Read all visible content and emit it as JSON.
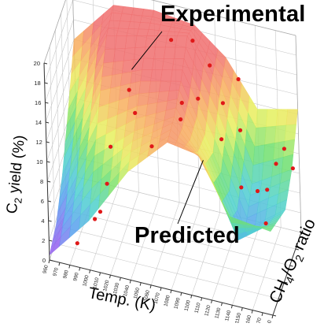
{
  "chart_data": {
    "type": "surface-3d",
    "ylabel_prefix": "C",
    "ylabel_sub": "2",
    "ylabel_suffix": " yield (%)",
    "xlabel": "Temp. (K)",
    "zlabel_main": "CH",
    "zlabel_sub": "4",
    "zlabel_rest": "/O",
    "zlabel_sub2": "2",
    "zlabel_end": " ratio",
    "annotations": {
      "experimental": "Experimental",
      "predicted": "Predicted"
    },
    "y_ticks": [
      "0",
      "2",
      "4",
      "6",
      "8",
      "10",
      "12",
      "14",
      "16",
      "18",
      "20"
    ],
    "x_ticks": [
      "960",
      "970",
      "980",
      "990",
      "1000",
      "1010",
      "1020",
      "1030",
      "1040",
      "1050",
      "1060",
      "1070",
      "1080",
      "1090",
      "1100",
      "1110",
      "1120",
      "1130",
      "1140",
      "1150",
      "1160",
      "1170",
      "1180"
    ],
    "ylim": [
      0,
      20
    ],
    "xlim": [
      960,
      1180
    ],
    "ratio_range": [
      0,
      1
    ],
    "grid": true,
    "colormap": [
      "#9a5cf0",
      "#5aa0f0",
      "#4fd0d0",
      "#70e070",
      "#e8f060",
      "#f8b060",
      "#f07070"
    ],
    "points": [
      {
        "temp": 985,
        "ratio": 0.1,
        "yield": 1.5
      },
      {
        "temp": 1000,
        "ratio": 0.2,
        "yield": 3.5
      },
      {
        "temp": 1005,
        "ratio": 0.22,
        "yield": 4.2
      },
      {
        "temp": 1010,
        "ratio": 0.3,
        "yield": 6.5
      },
      {
        "temp": 1010,
        "ratio": 0.45,
        "yield": 9.0
      },
      {
        "temp": 1030,
        "ratio": 0.62,
        "yield": 11.5
      },
      {
        "temp": 1050,
        "ratio": 0.48,
        "yield": 9.8
      },
      {
        "temp": 1075,
        "ratio": 0.62,
        "yield": 12.0
      },
      {
        "temp": 1040,
        "ratio": 0.12,
        "yield": 18.3
      },
      {
        "temp": 1060,
        "ratio": 0.88,
        "yield": 17.5
      },
      {
        "temp": 1080,
        "ratio": 0.92,
        "yield": 17.6
      },
      {
        "temp": 1085,
        "ratio": 0.35,
        "yield": 16.2
      },
      {
        "temp": 1100,
        "ratio": 0.8,
        "yield": 16.6
      },
      {
        "temp": 1095,
        "ratio": 0.55,
        "yield": 15.2
      },
      {
        "temp": 1115,
        "ratio": 0.62,
        "yield": 11.0
      },
      {
        "temp": 1115,
        "ratio": 0.7,
        "yield": 14.0
      },
      {
        "temp": 1125,
        "ratio": 0.9,
        "yield": 15.0
      },
      {
        "temp": 1130,
        "ratio": 0.75,
        "yield": 11.2
      },
      {
        "temp": 1140,
        "ratio": 0.4,
        "yield": 8.6
      },
      {
        "temp": 1150,
        "ratio": 0.6,
        "yield": 6.8
      },
      {
        "temp": 1155,
        "ratio": 0.75,
        "yield": 5.8
      },
      {
        "temp": 1160,
        "ratio": 0.9,
        "yield": 7.3
      },
      {
        "temp": 1165,
        "ratio": 0.35,
        "yield": 6.0
      },
      {
        "temp": 1170,
        "ratio": 0.85,
        "yield": 9.5
      },
      {
        "temp": 1175,
        "ratio": 0.95,
        "yield": 6.8
      }
    ],
    "surface": {
      "temps": [
        960,
        1000,
        1040,
        1080,
        1110,
        1140,
        1180
      ],
      "ratios": [
        0,
        0.25,
        0.5,
        0.75,
        1
      ],
      "yield": [
        [
          0.5,
          1.5,
          4.5,
          9.0,
          14.0
        ],
        [
          5.0,
          9.5,
          14.0,
          17.5,
          18.5
        ],
        [
          11.0,
          13.0,
          16.0,
          18.5,
          19.0
        ],
        [
          15.0,
          15.5,
          17.0,
          19.5,
          18.5
        ],
        [
          14.5,
          11.5,
          10.5,
          14.0,
          16.0
        ],
        [
          9.0,
          4.5,
          3.5,
          6.0,
          11.5
        ],
        [
          8.5,
          7.5,
          6.5,
          8.5,
          12.5
        ]
      ]
    }
  }
}
